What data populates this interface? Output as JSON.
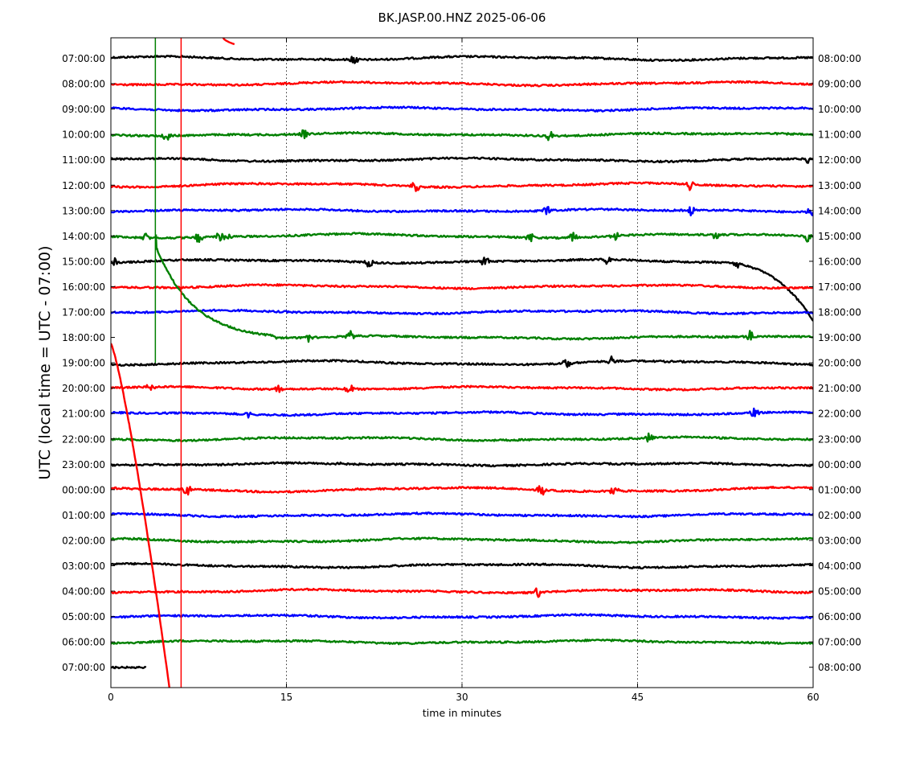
{
  "chart_data": {
    "type": "line",
    "title": "BK.JASP.00.HNZ 2025-06-06",
    "xlabel": "time in minutes",
    "ylabel": "UTC (local time = UTC - 07:00)",
    "xlim": [
      0,
      60
    ],
    "x_ticks": [
      0,
      15,
      30,
      45,
      60
    ],
    "x_tick_labels": [
      "0",
      "15",
      "30",
      "45",
      "60"
    ],
    "x_gridlines": [
      15,
      30,
      45
    ],
    "grid_style": "dotted-vertical",
    "left_labels": [
      "07:00:00",
      "08:00:00",
      "09:00:00",
      "10:00:00",
      "11:00:00",
      "12:00:00",
      "13:00:00",
      "14:00:00",
      "15:00:00",
      "16:00:00",
      "17:00:00",
      "18:00:00",
      "19:00:00",
      "20:00:00",
      "21:00:00",
      "22:00:00",
      "23:00:00",
      "00:00:00",
      "01:00:00",
      "02:00:00",
      "03:00:00",
      "04:00:00",
      "05:00:00",
      "06:00:00",
      "07:00:00"
    ],
    "right_labels": [
      "08:00:00",
      "09:00:00",
      "10:00:00",
      "11:00:00",
      "12:00:00",
      "13:00:00",
      "14:00:00",
      "15:00:00",
      "16:00:00",
      "17:00:00",
      "18:00:00",
      "19:00:00",
      "20:00:00",
      "21:00:00",
      "22:00:00",
      "23:00:00",
      "00:00:00",
      "01:00:00",
      "02:00:00",
      "03:00:00",
      "04:00:00",
      "05:00:00",
      "06:00:00",
      "07:00:00",
      "08:00:00"
    ],
    "trace_colors": [
      "#000000",
      "#ff0000",
      "#0000ff",
      "#008000"
    ],
    "vertical_markers": [
      {
        "x": 3.8,
        "color": "#008000"
      },
      {
        "x": 6.0,
        "color": "#ff0000"
      }
    ]
  }
}
